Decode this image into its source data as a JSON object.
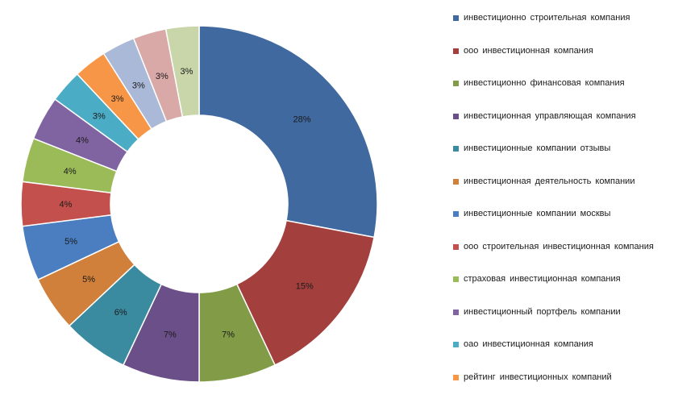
{
  "chart_data": {
    "type": "pie",
    "donut": true,
    "legend_position": "right",
    "slices": [
      {
        "label": "инвестиционно  строительная компания",
        "value": 28,
        "value_label": "28%",
        "color": "#4069A0"
      },
      {
        "label": "ооо инвестиционная  компания",
        "value": 15,
        "value_label": "15%",
        "color": "#A3403D"
      },
      {
        "label": "инвестиционно  финансовая компания",
        "value": 7,
        "value_label": "7%",
        "color": "#819B47"
      },
      {
        "label": "инвестиционная  управляющая компания",
        "value": 7,
        "value_label": "7%",
        "color": "#6A4F88"
      },
      {
        "label": "инвестиционные  компании отзывы",
        "value": 6,
        "value_label": "6%",
        "color": "#3A8BA0"
      },
      {
        "label": "инвестиционная  деятельность компании",
        "value": 5,
        "value_label": "5%",
        "color": "#D0803A"
      },
      {
        "label": "инвестиционные  компании москвы",
        "value": 5,
        "value_label": "5%",
        "color": "#4A7EC1"
      },
      {
        "label": "ооо строительная инвестиционная  компания",
        "value": 4,
        "value_label": "4%",
        "color": "#C4504D"
      },
      {
        "label": "страховая инвестиционная  компания",
        "value": 4,
        "value_label": "4%",
        "color": "#9BBB59"
      },
      {
        "label": "инвестиционный  портфель компании",
        "value": 4,
        "value_label": "4%",
        "color": "#8064A2"
      },
      {
        "label": "оао инвестиционная  компания",
        "value": 3,
        "value_label": "3%",
        "color": "#4BACC6"
      },
      {
        "label": "рейтинг инвестиционных  компаний",
        "value": 3,
        "value_label": "3%",
        "color": "#F79646"
      },
      {
        "label": "",
        "value": 3,
        "value_label": "3%",
        "color": "#AAB9D8"
      },
      {
        "label": "",
        "value": 3,
        "value_label": "3%",
        "color": "#D9A9A8"
      },
      {
        "label": "",
        "value": 3,
        "value_label": "3%",
        "color": "#C8D6A9"
      }
    ]
  }
}
